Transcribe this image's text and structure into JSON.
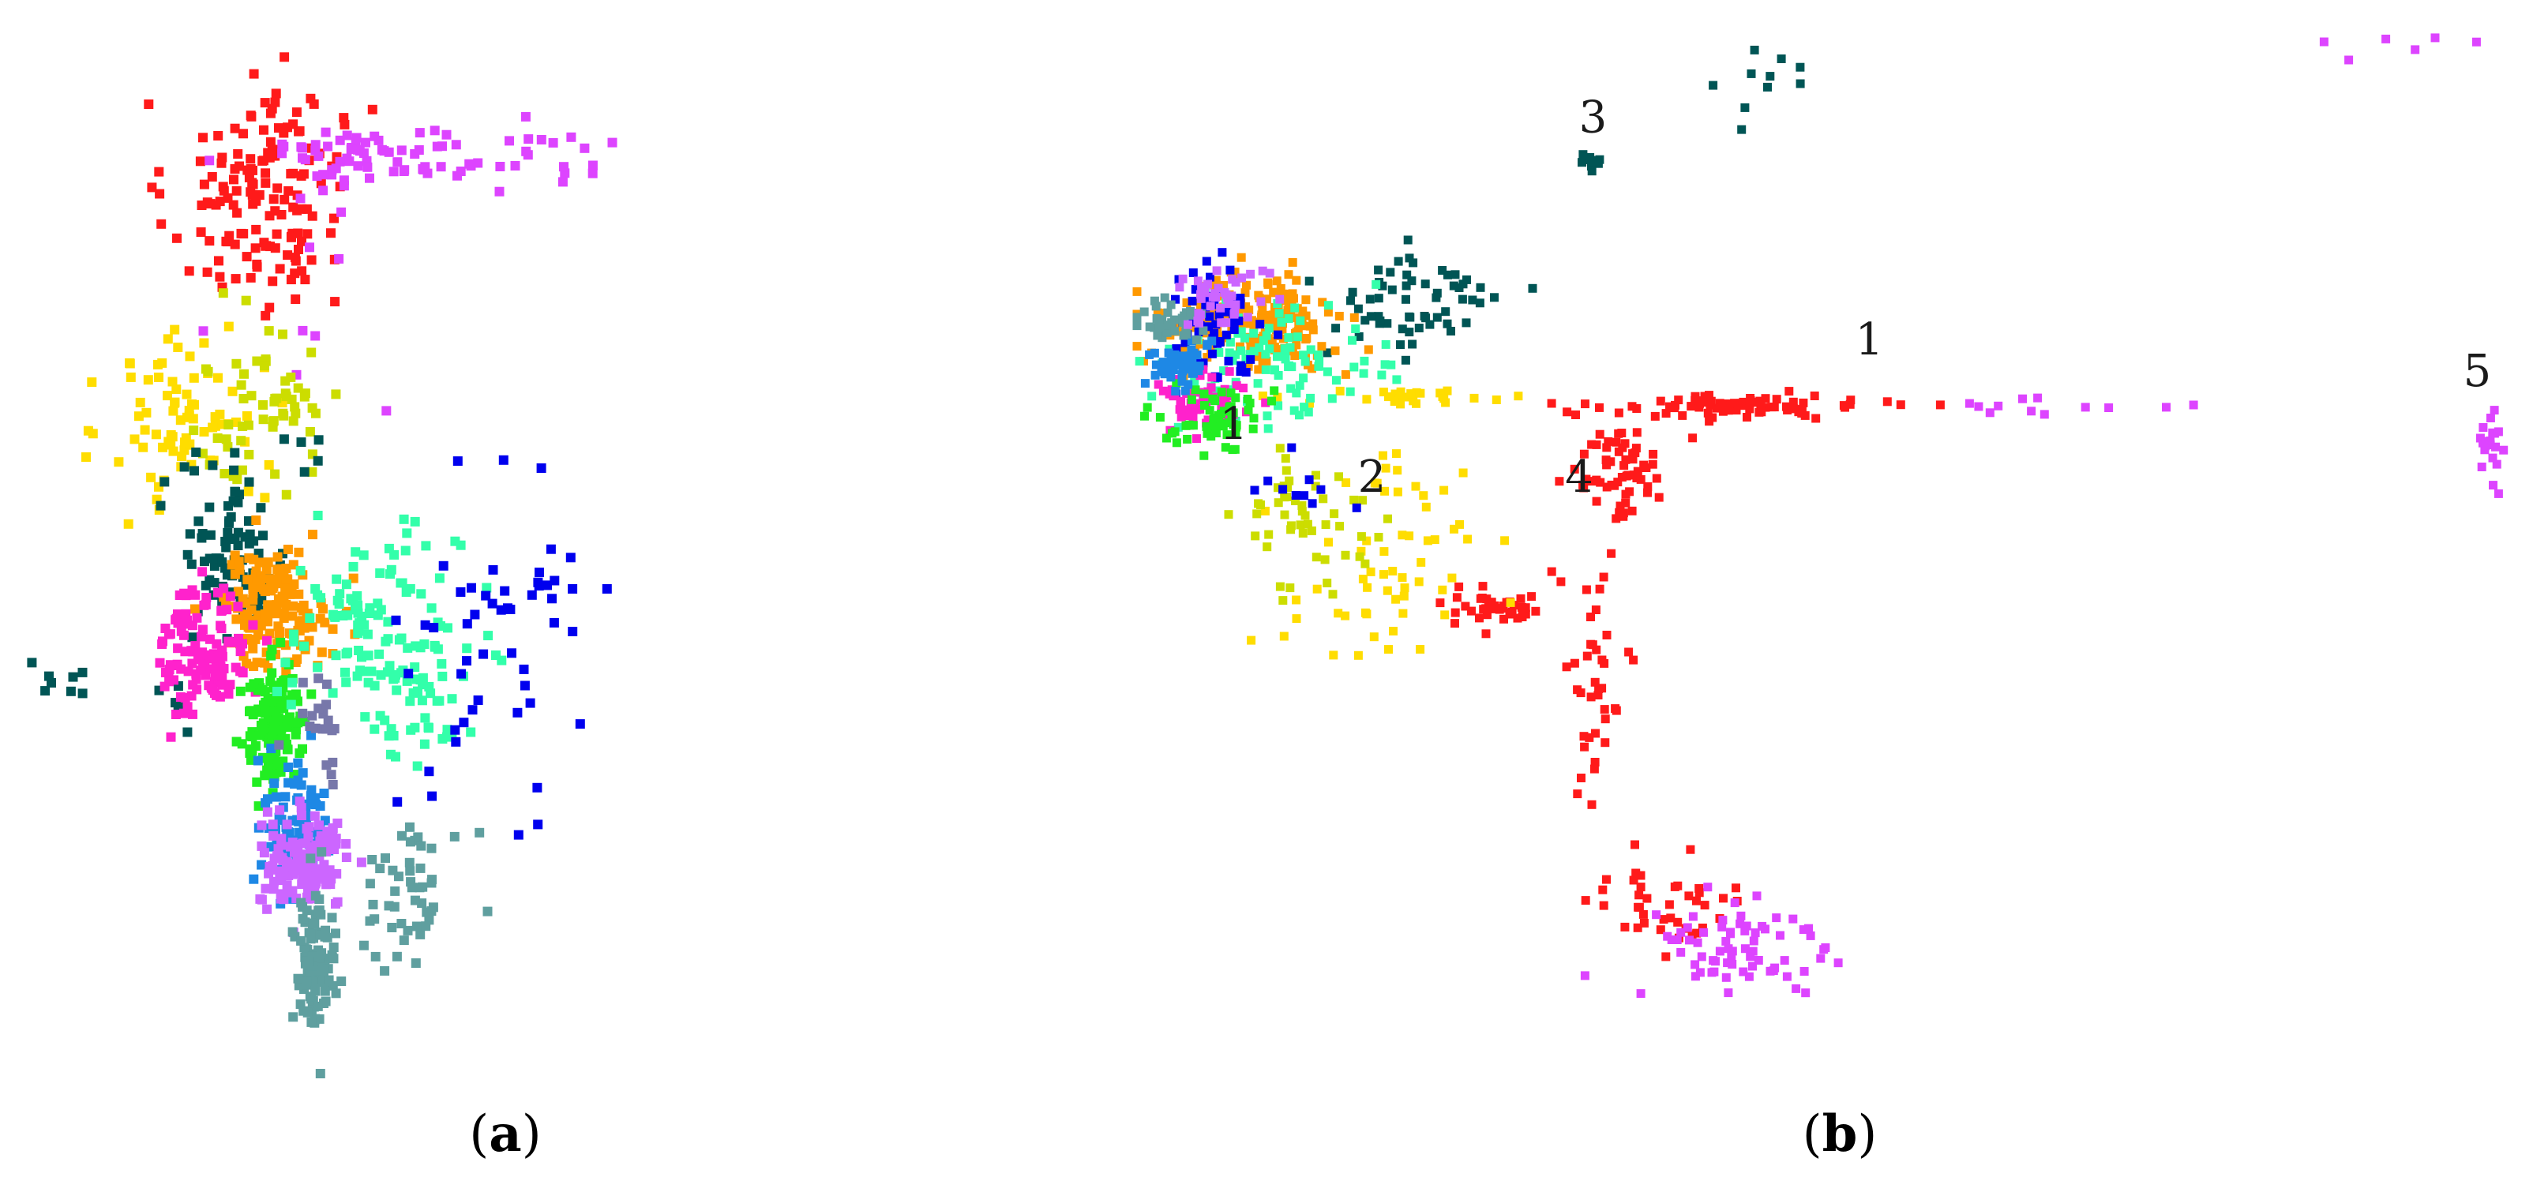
{
  "chart_data": [
    {
      "type": "scatter",
      "panel_label": "a",
      "title": "",
      "xlabel": "",
      "ylabel": "",
      "xlim": [
        0,
        100
      ],
      "ylim": [
        0,
        100
      ],
      "grid": false,
      "legend": "none",
      "series": [
        {
          "color": "#ff1a1a",
          "clusters": [
            [
              24,
              82,
              8,
              9,
              120
            ],
            [
              27,
              89,
              5,
              5,
              30
            ]
          ]
        },
        {
          "color": "#dd44ff",
          "clusters": [
            [
              35,
              87,
              10,
              3,
              60
            ],
            [
              52,
              86,
              10,
              3,
              25
            ],
            [
              30,
              70,
              9,
              12,
              8
            ]
          ]
        },
        {
          "color": "#ffdd00",
          "clusters": [
            [
              17,
              62,
              7,
              8,
              80
            ]
          ]
        },
        {
          "color": "#ccdd00",
          "clusters": [
            [
              25,
              63,
              7,
              7,
              60
            ]
          ]
        },
        {
          "color": "#005555",
          "clusters": [
            [
              22,
              49,
              5,
              8,
              90
            ],
            [
              5,
              38,
              3,
              3,
              8
            ],
            [
              17,
              35,
              2,
              3,
              6
            ],
            [
              29,
              58,
              2,
              2,
              5
            ]
          ]
        },
        {
          "color": "#ff9900",
          "clusters": [
            [
              26,
              44,
              5,
              5,
              160
            ]
          ]
        },
        {
          "color": "#ff22cc",
          "clusters": [
            [
              19,
              40,
              4,
              6,
              120
            ]
          ]
        },
        {
          "color": "#22ee22",
          "clusters": [
            [
              26,
              33,
              3,
              5,
              140
            ]
          ]
        },
        {
          "color": "#33ffaa",
          "clusters": [
            [
              36,
              42,
              8,
              8,
              110
            ],
            [
              40,
              34,
              5,
              6,
              40
            ]
          ]
        },
        {
          "color": "#0000ee",
          "clusters": [
            [
              48,
              42,
              8,
              13,
              40
            ],
            [
              54,
              45,
              5,
              4,
              12
            ]
          ]
        },
        {
          "color": "#1e88e5",
          "clusters": [
            [
              28,
              24,
              3,
              6,
              80
            ]
          ]
        },
        {
          "color": "#cc66ff",
          "clusters": [
            [
              29,
              20,
              4,
              4,
              140
            ]
          ]
        },
        {
          "color": "#5f9f9f",
          "clusters": [
            [
              30,
              10,
              2,
              6,
              100
            ],
            [
              40,
              18,
              5,
              6,
              50
            ]
          ]
        },
        {
          "color": "#7777aa",
          "clusters": [
            [
              31,
              33,
              2,
              4,
              20
            ]
          ]
        }
      ]
    },
    {
      "type": "scatter",
      "panel_label": "b",
      "title": "",
      "xlabel": "",
      "ylabel": "",
      "xlim": [
        0,
        100
      ],
      "ylim": [
        0,
        100
      ],
      "grid": false,
      "legend": "none",
      "annotations": [
        {
          "text": "1",
          "x": 53,
          "y": 68
        },
        {
          "text": "1",
          "x": 7,
          "y": 60
        },
        {
          "text": "2",
          "x": 17,
          "y": 55
        },
        {
          "text": "3",
          "x": 33,
          "y": 89
        },
        {
          "text": "4",
          "x": 32,
          "y": 55
        },
        {
          "text": "5",
          "x": 97,
          "y": 65
        }
      ],
      "series": [
        {
          "color": "#ff1a1a",
          "clusters": [
            [
              43,
              63,
              9,
              1,
              80
            ],
            [
              35,
              57,
              3,
              4,
              60
            ],
            [
              33,
              37,
              2,
              12,
              40
            ],
            [
              38,
              16,
              6,
              4,
              40
            ],
            [
              26,
              44,
              4,
              2,
              40
            ]
          ]
        },
        {
          "color": "#dd44ff",
          "clusters": [
            [
              43,
              12,
              6,
              5,
              70
            ],
            [
              68,
              63,
              8,
              1,
              12
            ],
            [
              98,
              58,
              1,
              4,
              20
            ],
            [
              90,
              97,
              8,
              2,
              6
            ]
          ]
        },
        {
          "color": "#005555",
          "clusters": [
            [
              33,
              86,
              1,
              1,
              12
            ],
            [
              44,
              93,
              8,
              4,
              10
            ],
            [
              20,
              73,
              6,
              5,
              60
            ]
          ]
        },
        {
          "color": "#ff9900",
          "clusters": [
            [
              8,
              71,
              6,
              4,
              200
            ]
          ]
        },
        {
          "color": "#ffdd00",
          "clusters": [
            [
              18,
              48,
              7,
              10,
              60
            ],
            [
              20,
              64,
              8,
              1,
              25
            ]
          ]
        },
        {
          "color": "#ccdd00",
          "clusters": [
            [
              13,
              52,
              5,
              6,
              50
            ]
          ]
        },
        {
          "color": "#33ffaa",
          "clusters": [
            [
              10,
              67,
              7,
              5,
              100
            ]
          ]
        },
        {
          "color": "#0000ee",
          "clusters": [
            [
              5,
              71,
              3,
              5,
              60
            ],
            [
              12,
              56,
              3,
              3,
              10
            ]
          ]
        },
        {
          "color": "#ff22cc",
          "clusters": [
            [
              5,
              64,
              3,
              3,
              60
            ]
          ]
        },
        {
          "color": "#22ee22",
          "clusters": [
            [
              6,
              62,
              3,
              3,
              60
            ]
          ]
        },
        {
          "color": "#1e88e5",
          "clusters": [
            [
              3,
              67,
              2,
              2,
              50
            ]
          ]
        },
        {
          "color": "#5f9f9f",
          "clusters": [
            [
              2,
              71,
              2,
              2,
              40
            ]
          ]
        },
        {
          "color": "#cc66ff",
          "clusters": [
            [
              6,
              74,
              3,
              3,
              40
            ]
          ]
        }
      ]
    }
  ]
}
